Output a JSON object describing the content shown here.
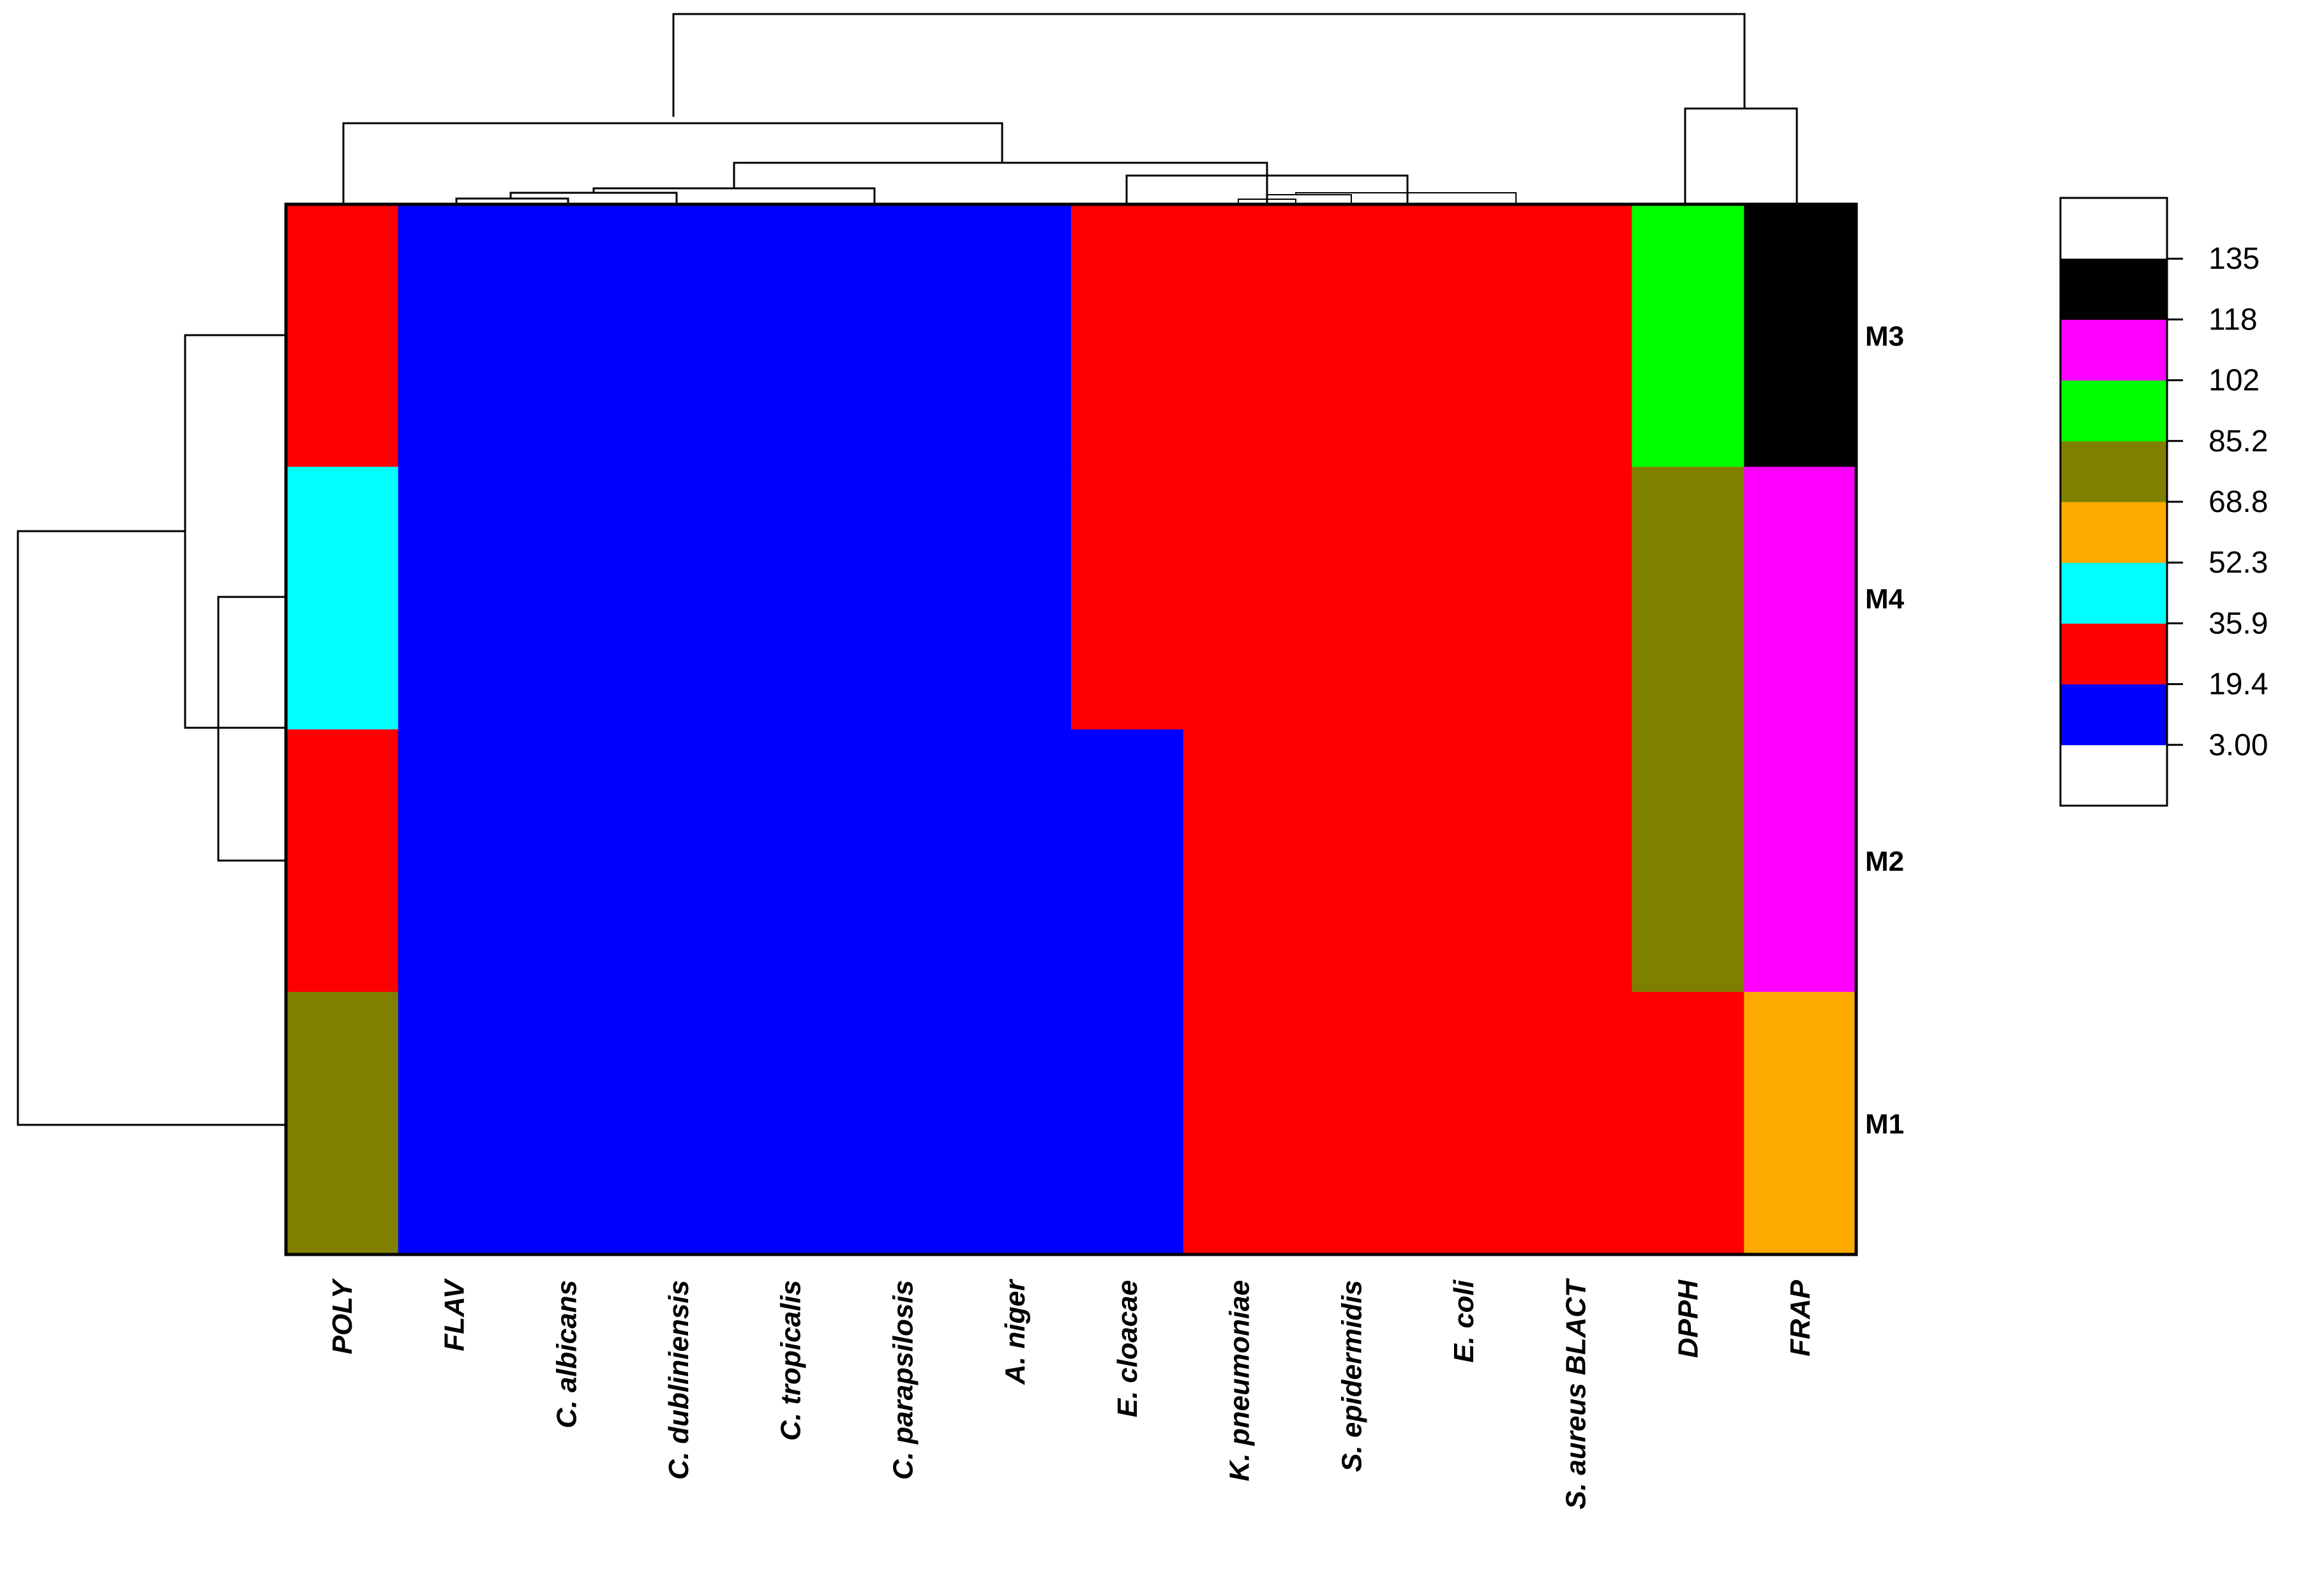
{
  "chart_data": {
    "type": "heatmap",
    "title": "",
    "columns": [
      "POLY",
      "FLAV",
      "C. albicans",
      "C. dubliniensis",
      "C. tropicalis",
      "C. parapsilosis",
      "A. niger",
      "E. cloacae",
      "K. pneumoniae",
      "S. epidermidis",
      "E. coli",
      "S. aureus BLACT",
      "DPPH",
      "FRAP"
    ],
    "rows": [
      "M3",
      "M4",
      "M2",
      "M1"
    ],
    "values": [
      [
        25,
        10,
        10,
        10,
        10,
        10,
        10,
        25,
        25,
        25,
        25,
        25,
        95,
        130
      ],
      [
        45,
        10,
        10,
        10,
        10,
        10,
        10,
        25,
        25,
        25,
        25,
        25,
        75,
        110
      ],
      [
        25,
        10,
        10,
        10,
        10,
        10,
        10,
        10,
        25,
        25,
        25,
        25,
        75,
        110
      ],
      [
        75,
        10,
        10,
        10,
        10,
        10,
        10,
        10,
        25,
        25,
        25,
        25,
        25,
        60
      ]
    ],
    "color_scale": {
      "breaks": [
        "3.00",
        "19.4",
        "35.9",
        "52.3",
        "68.8",
        "85.2",
        "102",
        "118",
        "135"
      ],
      "colors": [
        "#0000ff",
        "#ff0000",
        "#00ffff",
        "#ffaa00",
        "#808000",
        "#00ff00",
        "#ff00ff",
        "#000000"
      ]
    },
    "legend_position": "right",
    "row_dendrogram": "left",
    "column_dendrogram": "top"
  }
}
